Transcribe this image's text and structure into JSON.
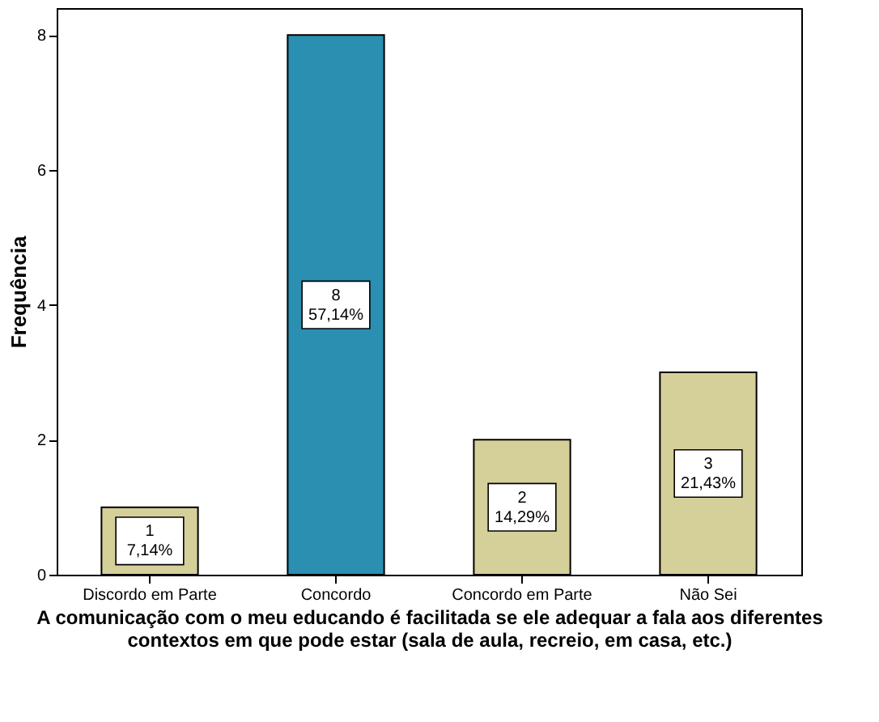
{
  "chart_data": {
    "type": "bar",
    "categories": [
      "Discordo em Parte",
      "Concordo",
      "Concordo em Parte",
      "Não Sei"
    ],
    "values": [
      1,
      8,
      2,
      3
    ],
    "colors": [
      "#d5d09a",
      "#2a8fb0",
      "#d5d09a",
      "#d5d09a"
    ],
    "value_labels": [
      "1\n7,14%",
      "8\n57,14%",
      "2\n14,29%",
      "3\n21,43%"
    ],
    "xlabel": "A comunicação com o meu educando é facilitada se ele adequar a fala aos diferentes contextos em que pode estar (sala de aula, recreio, em casa, etc.)",
    "ylabel": "Frequência",
    "ylim": [
      0,
      8.4
    ],
    "yticks": [
      0,
      2,
      4,
      6,
      8
    ],
    "grid": false
  }
}
